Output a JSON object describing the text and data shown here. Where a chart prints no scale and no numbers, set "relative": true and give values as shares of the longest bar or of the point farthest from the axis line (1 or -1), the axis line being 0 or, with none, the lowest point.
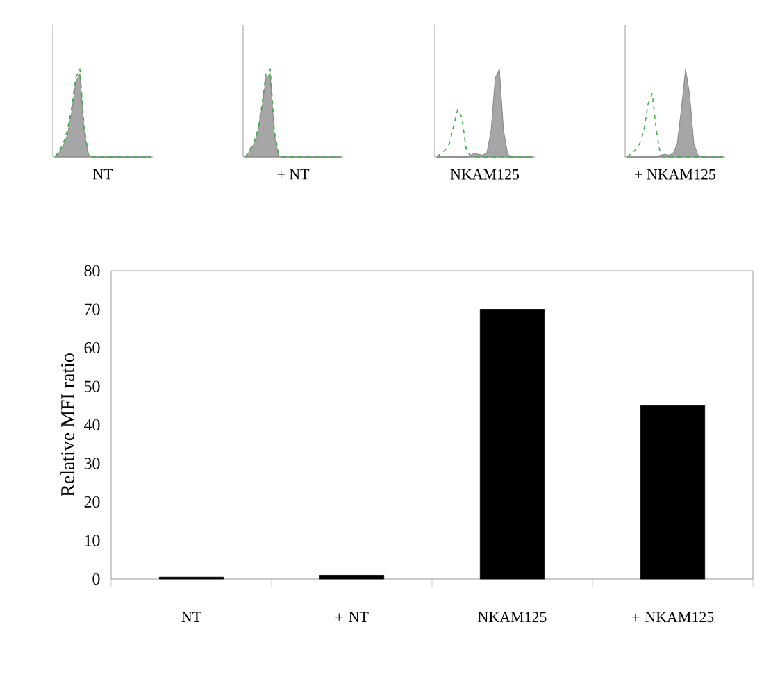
{
  "chart_data": [
    {
      "type": "area",
      "relative": true,
      "title": "NT",
      "tick_labels": false,
      "categories": [
        null,
        null,
        null,
        null,
        null,
        null,
        null,
        null,
        null,
        null,
        null,
        null,
        null,
        null,
        null,
        null,
        null,
        null,
        null,
        null,
        null,
        null,
        null,
        null
      ],
      "series": [
        {
          "type": "area",
          "color": "#a6a6a6",
          "values": [
            0,
            0.05,
            0.12,
            0.25,
            0.5,
            0.85,
            0.95,
            0.3,
            0.03,
            0,
            0,
            0,
            0,
            0,
            0,
            0,
            0,
            0,
            0,
            0,
            0,
            0,
            0,
            0
          ]
        },
        {
          "type": "line",
          "color": "#3cb043",
          "line_style": "dashed",
          "values": [
            0,
            0.06,
            0.15,
            0.3,
            0.55,
            0.9,
            1,
            0.35,
            0.03,
            0,
            0,
            0,
            0,
            0,
            0,
            0,
            0,
            0,
            0,
            0,
            0,
            0,
            0,
            0
          ]
        }
      ]
    },
    {
      "type": "area",
      "relative": true,
      "title": "+ NT",
      "tick_labels": false,
      "categories": [
        null,
        null,
        null,
        null,
        null,
        null,
        null,
        null,
        null,
        null,
        null,
        null,
        null,
        null,
        null,
        null,
        null,
        null,
        null,
        null,
        null,
        null,
        null,
        null
      ],
      "series": [
        {
          "type": "area",
          "color": "#a6a6a6",
          "values": [
            0,
            0.06,
            0.14,
            0.28,
            0.55,
            0.9,
            0.95,
            0.25,
            0.02,
            0,
            0,
            0,
            0,
            0,
            0,
            0,
            0,
            0,
            0,
            0,
            0,
            0,
            0,
            0
          ]
        },
        {
          "type": "line",
          "color": "#3cb043",
          "line_style": "dashed",
          "values": [
            0,
            0.07,
            0.16,
            0.3,
            0.58,
            0.95,
            1,
            0.3,
            0.03,
            0,
            0,
            0,
            0,
            0,
            0,
            0,
            0,
            0,
            0,
            0,
            0,
            0,
            0,
            0
          ]
        }
      ]
    },
    {
      "type": "area",
      "relative": true,
      "title": "NKAM125",
      "tick_labels": false,
      "categories": [
        null,
        null,
        null,
        null,
        null,
        null,
        null,
        null,
        null,
        null,
        null,
        null,
        null,
        null,
        null,
        null,
        null,
        null,
        null,
        null,
        null,
        null,
        null,
        null
      ],
      "series": [
        {
          "type": "area",
          "color": "#a6a6a6",
          "values": [
            0,
            0,
            0,
            0,
            0,
            0,
            0,
            0,
            0.02,
            0.04,
            0.03,
            0.02,
            0.05,
            0.3,
            0.9,
            1,
            0.3,
            0.03,
            0,
            0,
            0,
            0,
            0,
            0
          ]
        },
        {
          "type": "line",
          "color": "#3cb043",
          "line_style": "dashed",
          "values": [
            0,
            0.04,
            0.08,
            0.15,
            0.35,
            0.54,
            0.45,
            0.1,
            0.01,
            0,
            0,
            0,
            0,
            0,
            0,
            0,
            0,
            0,
            0,
            0,
            0,
            0,
            0,
            0
          ]
        }
      ]
    },
    {
      "type": "area",
      "relative": true,
      "title": "+ NKAM125",
      "tick_labels": false,
      "categories": [
        null,
        null,
        null,
        null,
        null,
        null,
        null,
        null,
        null,
        null,
        null,
        null,
        null,
        null,
        null,
        null,
        null,
        null,
        null,
        null,
        null,
        null,
        null,
        null
      ],
      "series": [
        {
          "type": "area",
          "color": "#a6a6a6",
          "values": [
            0,
            0,
            0,
            0,
            0,
            0,
            0,
            0,
            0.02,
            0.03,
            0.02,
            0.04,
            0.15,
            0.55,
            1,
            0.7,
            0.15,
            0.02,
            0,
            0,
            0,
            0,
            0,
            0
          ]
        },
        {
          "type": "line",
          "color": "#3cb043",
          "line_style": "dashed",
          "values": [
            0,
            0.04,
            0.08,
            0.15,
            0.3,
            0.6,
            0.72,
            0.3,
            0.02,
            0,
            0,
            0,
            0,
            0,
            0,
            0,
            0,
            0,
            0,
            0,
            0,
            0,
            0,
            0
          ]
        }
      ]
    },
    {
      "type": "bar",
      "ylabel": "Relative MFI ratio",
      "categories": [
        "NT",
        "+ NT",
        "NKAM125",
        "+ NKAM125"
      ],
      "values": [
        0.5,
        1,
        70,
        45
      ],
      "color": "#000000",
      "ylim": [
        0,
        80
      ],
      "yticks": [
        0,
        10,
        20,
        30,
        40,
        50,
        60,
        70,
        80
      ]
    }
  ]
}
